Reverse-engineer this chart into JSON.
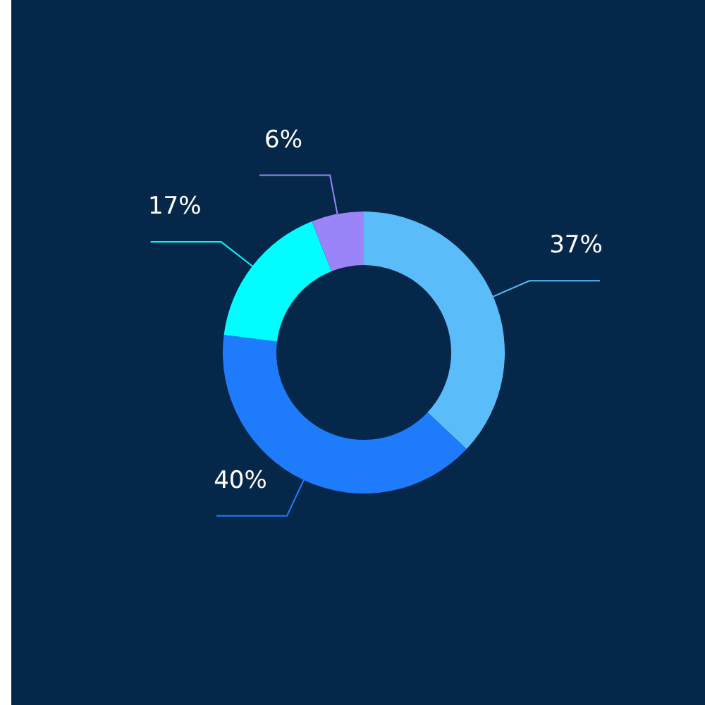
{
  "chart_data": {
    "type": "donut",
    "categories": [
      null,
      null,
      null,
      null
    ],
    "values": [
      37,
      40,
      17,
      6
    ],
    "colors": [
      "#5bbcfa",
      "#1e7bfc",
      "#00fdff",
      "#9a84f8"
    ],
    "value_labels": [
      "37%",
      "40%",
      "17%",
      "6%"
    ]
  }
}
